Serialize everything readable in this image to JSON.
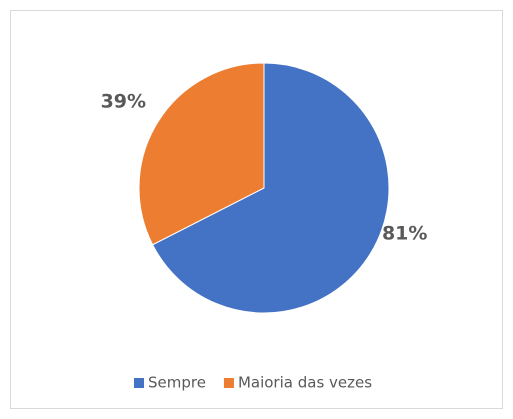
{
  "chart_data": {
    "type": "pie",
    "categories": [
      "Sempre",
      "Maioria das vezes"
    ],
    "values": [
      81,
      39
    ],
    "value_labels": [
      "81%",
      "39%"
    ],
    "colors": [
      "#4472c4",
      "#ed7d31"
    ],
    "legend": "bottom"
  }
}
